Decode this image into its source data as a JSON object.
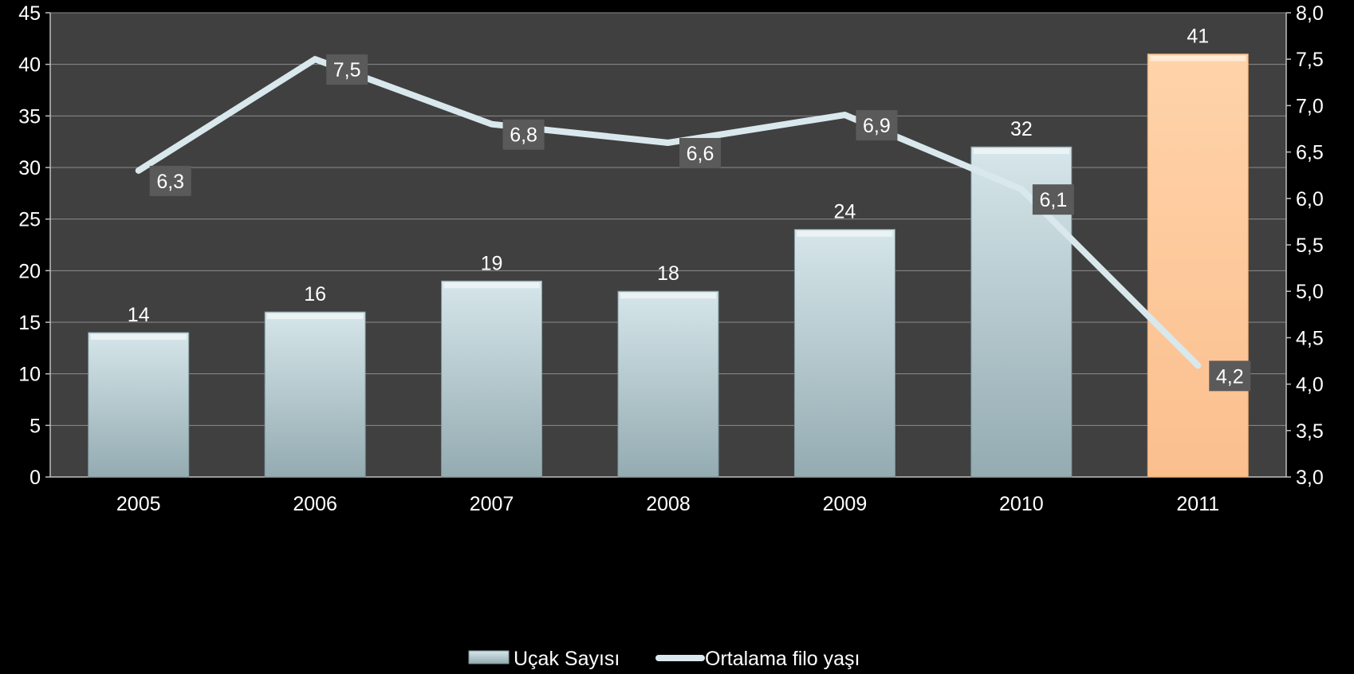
{
  "chart_data": {
    "type": "bar",
    "categories": [
      "2005",
      "2006",
      "2007",
      "2008",
      "2009",
      "2010",
      "2011"
    ],
    "series": [
      {
        "name": "Uçak Sayısı",
        "type": "bar",
        "axis": "left",
        "values": [
          14,
          16,
          19,
          18,
          24,
          32,
          41
        ],
        "labels": [
          "14",
          "16",
          "19",
          "18",
          "24",
          "32",
          "41"
        ]
      },
      {
        "name": "Ortalama filo yaşı",
        "type": "line",
        "axis": "right",
        "values": [
          6.3,
          7.5,
          6.8,
          6.6,
          6.9,
          6.1,
          4.2
        ],
        "labels": [
          "6,3",
          "7,5",
          "6,8",
          "6,6",
          "6,9",
          "6,1",
          "4,2"
        ]
      }
    ],
    "y_left": {
      "min": 0,
      "max": 45,
      "step": 5,
      "tick_labels": [
        "0",
        "5",
        "10",
        "15",
        "20",
        "25",
        "30",
        "35",
        "40",
        "45"
      ]
    },
    "y_right": {
      "min": 3.0,
      "max": 8.0,
      "step": 0.5,
      "tick_labels": [
        "3,0",
        "3,5",
        "4,0",
        "4,5",
        "5,0",
        "5,5",
        "6,0",
        "6,5",
        "7,0",
        "7,5",
        "8,0"
      ]
    },
    "grid": true,
    "legend": "bottom-center",
    "colors": {
      "page_bg": "#000000",
      "plot_bg": "#404040",
      "grid": "#8c8c8c",
      "bar_top": "#d6e6ea",
      "bar_bottom": "#93abb1",
      "highlight_top": "#ffd3a9",
      "highlight_bottom": "#fbbf8e",
      "highlight_category": "2011",
      "line": "#d9e8ec",
      "label_box": "#5a5a5a",
      "text": "#ffffff"
    }
  }
}
